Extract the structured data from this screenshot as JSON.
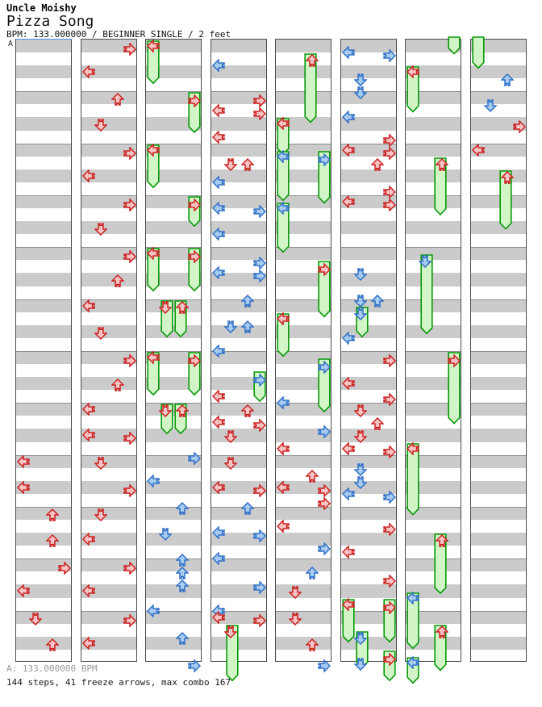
{
  "header": {
    "artist": "Uncle Moishy",
    "title": "Pizza Song",
    "meta": "BPM: 133.000000 / BEGINNER SINGLE / 2 feet"
  },
  "section_label": "A",
  "footer": {
    "bpm_line": "A: 133.000000 BPM",
    "stats_line": "144 steps, 41 freeze arrows, max combo 167"
  },
  "colors": {
    "red_fill": "#f6c4c4",
    "red_stroke": "#cc2020",
    "blue_fill": "#a8ccf0",
    "blue_stroke": "#3070c8",
    "green_fill": "#d2f5c8",
    "green_stroke": "#089a08",
    "stripe_gray": "#cbcbcb",
    "measure_line": "#8f8f8f",
    "panel_border": "#4a4a4a",
    "section_line": "#4a90d8"
  },
  "chart_data": {
    "type": "stepchart",
    "note_format": "[lane L|D|U|R, row (16th-note rows: quarter beats are integers, 8ths are x.5), color r=red4th b=blue8th t=tail-stub, optional freeze length in rows]",
    "rows_per_panel": 48,
    "beats_per_measure": 4,
    "panels": [
      {
        "notes": [
          [
            "L",
            32,
            "r"
          ],
          [
            "L",
            34,
            "r"
          ],
          [
            "U",
            36,
            "r"
          ],
          [
            "U",
            38,
            "r"
          ],
          [
            "R",
            40,
            "r"
          ],
          [
            "L",
            42,
            "r"
          ],
          [
            "D",
            44,
            "r"
          ],
          [
            "U",
            46,
            "r"
          ]
        ]
      },
      {
        "notes": [
          [
            "R",
            0,
            "r"
          ],
          [
            "L",
            2,
            "r"
          ],
          [
            "U",
            4,
            "r"
          ],
          [
            "D",
            6,
            "r"
          ],
          [
            "R",
            8,
            "r"
          ],
          [
            "L",
            10,
            "r"
          ],
          [
            "R",
            12,
            "r"
          ],
          [
            "D",
            14,
            "r"
          ],
          [
            "R",
            16,
            "r"
          ],
          [
            "U",
            18,
            "r"
          ],
          [
            "L",
            20,
            "r"
          ],
          [
            "D",
            22,
            "r"
          ],
          [
            "R",
            24,
            "r"
          ],
          [
            "U",
            26,
            "r"
          ],
          [
            "L",
            28,
            "r"
          ],
          [
            "L",
            30,
            "r"
          ],
          [
            "R",
            30,
            "r"
          ],
          [
            "D",
            32,
            "r"
          ],
          [
            "R",
            34,
            "r"
          ],
          [
            "D",
            36,
            "r"
          ],
          [
            "L",
            38,
            "r"
          ],
          [
            "R",
            40,
            "r"
          ],
          [
            "L",
            42,
            "r"
          ],
          [
            "R",
            44,
            "r"
          ],
          [
            "L",
            46,
            "r"
          ]
        ]
      },
      {
        "notes": [
          [
            "L",
            0,
            "r",
            2.5
          ],
          [
            "R",
            4,
            "r",
            2.3
          ],
          [
            "L",
            8,
            "r",
            2.5
          ],
          [
            "R",
            12,
            "r",
            1.5
          ],
          [
            "L",
            16,
            "r",
            2.5
          ],
          [
            "R",
            16,
            "r",
            2.5
          ],
          [
            "D",
            20,
            "r",
            2
          ],
          [
            "U",
            20,
            "r",
            2
          ],
          [
            "L",
            24,
            "r",
            2.5
          ],
          [
            "R",
            24,
            "r",
            2.5
          ],
          [
            "D",
            28,
            "r",
            1.5
          ],
          [
            "U",
            28,
            "r",
            1.5
          ],
          [
            "R",
            31.5,
            "b"
          ],
          [
            "L",
            33.5,
            "b"
          ],
          [
            "U",
            35.5,
            "b"
          ],
          [
            "D",
            37.5,
            "b"
          ],
          [
            "U",
            39.5,
            "b"
          ],
          [
            "U",
            40.5,
            "b"
          ],
          [
            "U",
            41.5,
            "b"
          ],
          [
            "L",
            43.5,
            "b"
          ],
          [
            "U",
            45.5,
            "b"
          ],
          [
            "R",
            47.5,
            "b"
          ]
        ]
      },
      {
        "notes": [
          [
            "L",
            1.5,
            "b"
          ],
          [
            "R",
            4,
            "r"
          ],
          [
            "L",
            5,
            "r"
          ],
          [
            "R",
            5,
            "r"
          ],
          [
            "L",
            7,
            "r"
          ],
          [
            "D",
            9,
            "r"
          ],
          [
            "U",
            9,
            "r"
          ],
          [
            "L",
            10.5,
            "b"
          ],
          [
            "L",
            12.5,
            "b"
          ],
          [
            "R",
            12.5,
            "b"
          ],
          [
            "L",
            14.5,
            "b"
          ],
          [
            "R",
            16.5,
            "b"
          ],
          [
            "L",
            17.5,
            "b"
          ],
          [
            "R",
            17.5,
            "b"
          ],
          [
            "U",
            19.5,
            "b"
          ],
          [
            "D",
            21.5,
            "b"
          ],
          [
            "U",
            21.5,
            "b"
          ],
          [
            "L",
            23.5,
            "b"
          ],
          [
            "R",
            25.5,
            "b",
            1.5
          ],
          [
            "L",
            27,
            "r"
          ],
          [
            "U",
            28,
            "r"
          ],
          [
            "L",
            29,
            "r"
          ],
          [
            "R",
            29,
            "r"
          ],
          [
            "D",
            30,
            "r"
          ],
          [
            "D",
            32,
            "r"
          ],
          [
            "L",
            34,
            "r"
          ],
          [
            "R",
            34,
            "r"
          ],
          [
            "U",
            35.5,
            "b"
          ],
          [
            "L",
            37.5,
            "b"
          ],
          [
            "R",
            37.5,
            "b"
          ],
          [
            "L",
            39.5,
            "b"
          ],
          [
            "R",
            41.5,
            "b"
          ],
          [
            "L",
            43.5,
            "b"
          ],
          [
            "L",
            44,
            "r"
          ],
          [
            "R",
            44,
            "r"
          ],
          [
            "D",
            45,
            "r",
            3.5
          ]
        ]
      },
      {
        "notes": [
          [
            "U",
            1,
            "r",
            4.5
          ],
          [
            "L",
            6,
            "r",
            2
          ],
          [
            "L",
            8.5,
            "b",
            3
          ],
          [
            "R",
            8.5,
            "b",
            3.2
          ],
          [
            "L",
            12.5,
            "b",
            3
          ],
          [
            "R",
            17,
            "r",
            3.5
          ],
          [
            "L",
            21,
            "r",
            2.5
          ],
          [
            "R",
            24.5,
            "b",
            3.3
          ],
          [
            "L",
            27.5,
            "b"
          ],
          [
            "R",
            29.5,
            "b"
          ],
          [
            "L",
            31,
            "r"
          ],
          [
            "U",
            33,
            "r"
          ],
          [
            "L",
            34,
            "r"
          ],
          [
            "R",
            34,
            "r"
          ],
          [
            "R",
            35,
            "r"
          ],
          [
            "L",
            37,
            "r"
          ],
          [
            "R",
            38.5,
            "b"
          ],
          [
            "U",
            40.5,
            "b"
          ],
          [
            "D",
            42,
            "r"
          ],
          [
            "D",
            44,
            "r"
          ],
          [
            "U",
            46,
            "r"
          ],
          [
            "R",
            47.5,
            "b"
          ]
        ]
      },
      {
        "notes": [
          [
            "L",
            0.5,
            "b"
          ],
          [
            "R",
            0.5,
            "b"
          ],
          [
            "D",
            2.5,
            "b"
          ],
          [
            "D",
            3.5,
            "b"
          ],
          [
            "L",
            5.5,
            "b"
          ],
          [
            "R",
            7,
            "r"
          ],
          [
            "L",
            8,
            "r"
          ],
          [
            "R",
            8,
            "r"
          ],
          [
            "U",
            9,
            "r"
          ],
          [
            "R",
            11,
            "r"
          ],
          [
            "L",
            12,
            "r"
          ],
          [
            "R",
            12,
            "r"
          ],
          [
            "D",
            17.5,
            "b"
          ],
          [
            "D",
            19.5,
            "b"
          ],
          [
            "U",
            19.5,
            "b"
          ],
          [
            "D",
            20.5,
            "b",
            1.5
          ],
          [
            "L",
            22.5,
            "b"
          ],
          [
            "R",
            24,
            "r"
          ],
          [
            "L",
            26,
            "r"
          ],
          [
            "R",
            27,
            "r"
          ],
          [
            "D",
            28,
            "r"
          ],
          [
            "U",
            29,
            "r"
          ],
          [
            "D",
            30,
            "r"
          ],
          [
            "L",
            31,
            "r"
          ],
          [
            "R",
            31,
            "r"
          ],
          [
            "D",
            32.5,
            "b"
          ],
          [
            "D",
            33.5,
            "b"
          ],
          [
            "L",
            34.5,
            "b"
          ],
          [
            "R",
            34.5,
            "b"
          ],
          [
            "R",
            37,
            "r"
          ],
          [
            "L",
            39,
            "r"
          ],
          [
            "R",
            41,
            "r"
          ],
          [
            "L",
            43,
            "r",
            2.5
          ],
          [
            "R",
            43,
            "r",
            2.5
          ],
          [
            "D",
            45.5,
            "b",
            2
          ],
          [
            "R",
            47,
            "r",
            1.5
          ],
          [
            "D",
            47.5,
            "b"
          ]
        ]
      },
      {
        "notes": [
          [
            "R",
            0,
            "t",
            0.6
          ],
          [
            "L",
            2,
            "r",
            2.7
          ],
          [
            "U",
            9,
            "r",
            3.6
          ],
          [
            "D",
            16.5,
            "b",
            5.3
          ],
          [
            "R",
            24,
            "r",
            4.7
          ],
          [
            "L",
            31,
            "r",
            4.7
          ],
          [
            "U",
            38,
            "r",
            3.8
          ],
          [
            "L",
            42.5,
            "b",
            3.5
          ],
          [
            "U",
            45,
            "r",
            2.7
          ],
          [
            "L",
            47.5,
            "b",
            1.2
          ]
        ]
      },
      {
        "notes": [
          [
            "L",
            0,
            "t",
            1.7
          ],
          [
            "U",
            2.5,
            "b"
          ],
          [
            "D",
            4.5,
            "b"
          ],
          [
            "R",
            6,
            "r"
          ],
          [
            "L",
            8,
            "r"
          ],
          [
            "U",
            10,
            "r",
            3.7
          ]
        ]
      }
    ]
  }
}
